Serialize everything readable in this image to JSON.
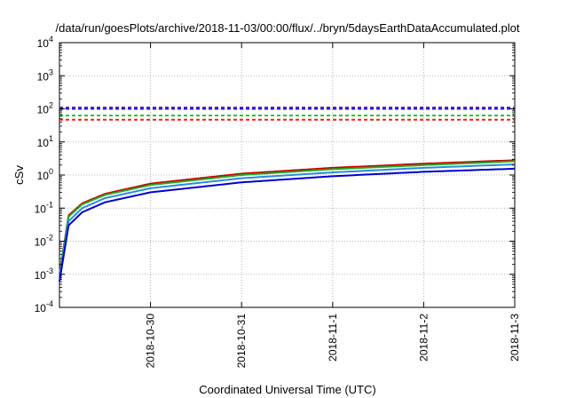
{
  "chart_data": {
    "type": "line",
    "title": "/data/run/goesPlots/archive/2018-11-03/00:00/flux/../bryn/5daysEarthDataAccumulated.plot",
    "xlabel": "Coordinated Universal Time (UTC)",
    "ylabel": "cSv",
    "x_tick_labels": [
      "2018-10-30",
      "2018-10-31",
      "2018-11-1",
      "2018-11-2",
      "2018-11-3"
    ],
    "x_ticks_days": [
      1,
      2,
      3,
      4,
      5
    ],
    "x_range_days": [
      0,
      5
    ],
    "y_scale": "log",
    "ylim": [
      0.0001,
      10000
    ],
    "y_tick_labels": [
      {
        "base": "10",
        "exp": "4"
      },
      {
        "base": "10",
        "exp": "3"
      },
      {
        "base": "10",
        "exp": "2"
      },
      {
        "base": "10",
        "exp": "1"
      },
      {
        "base": "10",
        "exp": "0"
      },
      {
        "base": "10",
        "exp": "-1"
      },
      {
        "base": "10",
        "exp": "-2"
      },
      {
        "base": "10",
        "exp": "-3"
      },
      {
        "base": "10",
        "exp": "-4"
      }
    ],
    "grid": true,
    "legend": "none",
    "thresholds": [
      {
        "value": 110,
        "color": "#7b1fa2",
        "style": "dashed"
      },
      {
        "value": 100,
        "color": "#1a1aff",
        "style": "dashed"
      },
      {
        "value": 63,
        "color": "#22cc22",
        "style": "dashed"
      },
      {
        "value": 47,
        "color": "#ff1a1a",
        "style": "dashed"
      }
    ],
    "series": [
      {
        "color": "#cc0000",
        "x": [
          0,
          0.1,
          0.25,
          0.5,
          1,
          2,
          3,
          4,
          5
        ],
        "y": [
          0.001,
          0.06,
          0.14,
          0.27,
          0.55,
          1.1,
          1.65,
          2.2,
          2.8
        ]
      },
      {
        "color": "#22aa22",
        "x": [
          0,
          0.1,
          0.25,
          0.5,
          1,
          2,
          3,
          4,
          5
        ],
        "y": [
          0.001,
          0.055,
          0.13,
          0.25,
          0.5,
          1.0,
          1.5,
          2.0,
          2.6
        ]
      },
      {
        "color": "#2a8adf",
        "x": [
          0,
          0.1,
          0.25,
          0.5,
          1,
          2,
          3,
          4,
          5
        ],
        "y": [
          0.0008,
          0.04,
          0.1,
          0.2,
          0.4,
          0.8,
          1.2,
          1.65,
          2.1
        ]
      },
      {
        "color": "#0000cc",
        "x": [
          0,
          0.1,
          0.25,
          0.5,
          1,
          2,
          3,
          4,
          5
        ],
        "y": [
          0.0006,
          0.03,
          0.075,
          0.15,
          0.3,
          0.6,
          0.92,
          1.25,
          1.55
        ]
      }
    ]
  }
}
